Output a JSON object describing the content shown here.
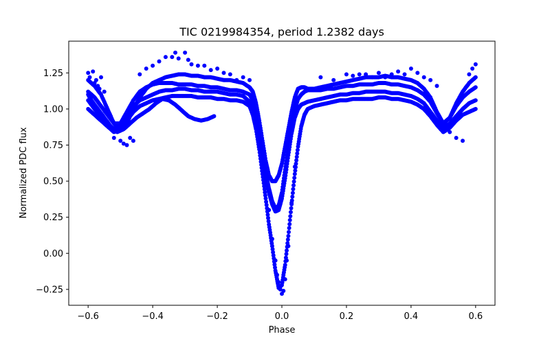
{
  "chart_data": {
    "type": "scatter",
    "title": "TIC 0219984354, period 1.2382 days",
    "xlabel": "Phase",
    "ylabel": "Normalized PDC flux",
    "xlim": [
      -0.66,
      0.66
    ],
    "ylim": [
      -0.36,
      1.47
    ],
    "x_ticks": [
      -0.6,
      -0.4,
      -0.2,
      0.0,
      0.2,
      0.4,
      0.6
    ],
    "x_tick_labels": [
      "−0.6",
      "−0.4",
      "−0.2",
      "0.0",
      "0.2",
      "0.4",
      "0.6"
    ],
    "y_ticks": [
      -0.25,
      0.0,
      0.25,
      0.5,
      0.75,
      1.0,
      1.25
    ],
    "y_tick_labels": [
      "−0.25",
      "0.00",
      "0.25",
      "0.50",
      "0.75",
      "1.00",
      "1.25"
    ],
    "grid": false,
    "marker_color": "#0000ff",
    "series": [
      {
        "x": [
          -0.6,
          -0.58,
          -0.56,
          -0.54,
          -0.52,
          -0.5,
          -0.48,
          -0.46,
          -0.44,
          -0.42,
          -0.4,
          -0.38,
          -0.36,
          -0.34,
          -0.32,
          -0.3,
          -0.28,
          -0.26,
          -0.24,
          -0.22,
          -0.2,
          -0.18,
          -0.16,
          -0.14,
          -0.12,
          -0.1,
          -0.09,
          -0.08,
          -0.07,
          -0.06,
          -0.05,
          -0.04,
          -0.03,
          -0.02,
          -0.01,
          0.0,
          0.01,
          0.02,
          0.03,
          0.04,
          0.05,
          0.06,
          0.07,
          0.08,
          0.1,
          0.12,
          0.14,
          0.16,
          0.18,
          0.2,
          0.22,
          0.24,
          0.26,
          0.28,
          0.3,
          0.32,
          0.34,
          0.36,
          0.38,
          0.4,
          0.42,
          0.44,
          0.46,
          0.48,
          0.5,
          0.52,
          0.54,
          0.56,
          0.58,
          0.6
        ],
        "y": [
          1.06,
          1.0,
          0.95,
          0.9,
          0.86,
          0.88,
          0.95,
          1.02,
          1.06,
          1.08,
          1.1,
          1.12,
          1.13,
          1.13,
          1.14,
          1.14,
          1.13,
          1.13,
          1.12,
          1.12,
          1.12,
          1.11,
          1.1,
          1.1,
          1.09,
          1.05,
          1.0,
          0.92,
          0.8,
          0.66,
          0.52,
          0.42,
          0.34,
          0.29,
          0.3,
          0.38,
          0.52,
          0.68,
          0.83,
          0.94,
          1.0,
          1.03,
          1.04,
          1.05,
          1.06,
          1.07,
          1.08,
          1.09,
          1.1,
          1.1,
          1.11,
          1.11,
          1.12,
          1.12,
          1.12,
          1.12,
          1.11,
          1.11,
          1.1,
          1.09,
          1.07,
          1.04,
          0.98,
          0.92,
          0.87,
          0.9,
          0.95,
          1.0,
          1.04,
          1.06
        ]
      },
      {
        "x": [
          -0.6,
          -0.58,
          -0.56,
          -0.54,
          -0.52,
          -0.5,
          -0.48,
          -0.46,
          -0.44,
          -0.42,
          -0.4,
          -0.38,
          -0.36,
          -0.34,
          -0.32,
          -0.3,
          -0.28,
          -0.26,
          -0.24,
          -0.22,
          -0.2,
          -0.18,
          -0.16,
          -0.14,
          -0.12,
          -0.1,
          -0.09,
          -0.08,
          -0.07,
          -0.06,
          -0.05,
          -0.04,
          -0.03,
          -0.02,
          -0.01,
          0.0,
          0.01,
          0.02,
          0.03,
          0.04,
          0.05,
          0.06,
          0.07,
          0.08,
          0.1,
          0.12,
          0.14,
          0.16,
          0.18,
          0.2,
          0.22,
          0.24,
          0.26,
          0.28,
          0.3,
          0.32,
          0.34,
          0.36,
          0.38,
          0.4,
          0.42,
          0.44,
          0.46,
          0.48,
          0.5,
          0.52,
          0.54,
          0.56,
          0.58,
          0.6
        ],
        "y": [
          1.12,
          1.08,
          1.02,
          0.96,
          0.9,
          0.9,
          0.98,
          1.06,
          1.12,
          1.15,
          1.17,
          1.18,
          1.18,
          1.18,
          1.17,
          1.17,
          1.17,
          1.16,
          1.16,
          1.15,
          1.15,
          1.14,
          1.13,
          1.13,
          1.12,
          1.1,
          1.06,
          0.98,
          0.85,
          0.7,
          0.56,
          0.45,
          0.36,
          0.31,
          0.33,
          0.42,
          0.58,
          0.74,
          0.89,
          0.99,
          1.07,
          1.1,
          1.12,
          1.13,
          1.13,
          1.13,
          1.14,
          1.14,
          1.15,
          1.16,
          1.16,
          1.17,
          1.17,
          1.17,
          1.18,
          1.18,
          1.17,
          1.17,
          1.16,
          1.15,
          1.13,
          1.1,
          1.05,
          0.97,
          0.9,
          0.94,
          1.02,
          1.08,
          1.12,
          1.15
        ]
      },
      {
        "x": [
          -0.6,
          -0.58,
          -0.56,
          -0.54,
          -0.52,
          -0.5,
          -0.48,
          -0.46,
          -0.44,
          -0.42,
          -0.4,
          -0.38,
          -0.36,
          -0.34,
          -0.32,
          -0.3,
          -0.28,
          -0.26,
          -0.24,
          -0.22,
          -0.2,
          -0.18,
          -0.16,
          -0.14,
          -0.12,
          -0.1,
          -0.09,
          -0.08,
          -0.07,
          -0.06,
          -0.05,
          -0.04,
          -0.03,
          -0.02,
          -0.01,
          0.0,
          0.01,
          0.02,
          0.03,
          0.04,
          0.05,
          0.06,
          0.07,
          0.08,
          0.1,
          0.12,
          0.14,
          0.16,
          0.18,
          0.2,
          0.22,
          0.24,
          0.26,
          0.28,
          0.3,
          0.32,
          0.34,
          0.36,
          0.38,
          0.4,
          0.42,
          0.44,
          0.46,
          0.48,
          0.5,
          0.52,
          0.54,
          0.56,
          0.58,
          0.6
        ],
        "y": [
          1.0,
          0.96,
          0.92,
          0.88,
          0.84,
          0.86,
          0.92,
          0.98,
          1.02,
          1.04,
          1.06,
          1.07,
          1.08,
          1.09,
          1.09,
          1.09,
          1.09,
          1.08,
          1.08,
          1.08,
          1.07,
          1.07,
          1.06,
          1.06,
          1.05,
          1.02,
          0.96,
          0.86,
          0.72,
          0.55,
          0.38,
          0.2,
          0.05,
          -0.12,
          -0.24,
          -0.22,
          -0.08,
          0.12,
          0.34,
          0.55,
          0.74,
          0.88,
          0.96,
          1.0,
          1.02,
          1.03,
          1.04,
          1.05,
          1.06,
          1.06,
          1.07,
          1.07,
          1.07,
          1.07,
          1.08,
          1.08,
          1.07,
          1.07,
          1.06,
          1.05,
          1.03,
          1.0,
          0.95,
          0.89,
          0.84,
          0.87,
          0.92,
          0.96,
          0.98,
          1.0
        ]
      },
      {
        "x": [
          -0.6,
          -0.58,
          -0.56,
          -0.54,
          -0.52,
          -0.5,
          -0.48,
          -0.46,
          -0.44,
          -0.42,
          -0.4,
          -0.38,
          -0.36,
          -0.34,
          -0.32,
          -0.3,
          -0.28,
          -0.26,
          -0.24,
          -0.22,
          -0.2,
          -0.18,
          -0.16,
          -0.14,
          -0.12,
          -0.1,
          -0.09,
          -0.08,
          -0.07,
          -0.06,
          -0.05,
          -0.04,
          -0.03,
          -0.02,
          -0.01,
          0.0,
          0.01,
          0.02,
          0.03,
          0.04,
          0.05,
          0.06,
          0.07,
          0.08,
          0.1,
          0.12,
          0.14,
          0.16,
          0.18,
          0.2,
          0.22,
          0.24,
          0.26,
          0.28,
          0.3,
          0.32,
          0.34,
          0.36,
          0.38,
          0.4,
          0.42,
          0.44,
          0.46,
          0.48,
          0.5,
          0.52,
          0.54,
          0.56,
          0.58,
          0.6
        ],
        "y": [
          1.2,
          1.16,
          1.1,
          1.0,
          0.9,
          0.85,
          0.9,
          1.0,
          1.08,
          1.14,
          1.18,
          1.2,
          1.22,
          1.23,
          1.24,
          1.24,
          1.23,
          1.23,
          1.22,
          1.22,
          1.21,
          1.2,
          1.2,
          1.19,
          1.18,
          1.15,
          1.12,
          1.04,
          0.92,
          0.78,
          0.64,
          0.54,
          0.5,
          0.5,
          0.54,
          0.62,
          0.74,
          0.86,
          0.98,
          1.08,
          1.14,
          1.15,
          1.15,
          1.14,
          1.14,
          1.15,
          1.16,
          1.17,
          1.18,
          1.19,
          1.2,
          1.21,
          1.22,
          1.22,
          1.22,
          1.23,
          1.22,
          1.22,
          1.21,
          1.2,
          1.18,
          1.14,
          1.08,
          0.98,
          0.9,
          0.94,
          1.04,
          1.12,
          1.18,
          1.22
        ]
      },
      {
        "x": [
          -0.6,
          -0.59,
          -0.57,
          -0.55,
          -0.53,
          -0.51,
          -0.49,
          -0.47,
          -0.45,
          -0.43,
          -0.41,
          -0.39,
          -0.37,
          -0.35,
          -0.33,
          -0.31,
          -0.29,
          -0.27,
          -0.25,
          -0.23,
          -0.21
        ],
        "y": [
          1.1,
          1.06,
          1.0,
          0.94,
          0.88,
          0.84,
          0.86,
          0.9,
          0.94,
          0.97,
          1.0,
          1.04,
          1.07,
          1.06,
          1.03,
          0.99,
          0.95,
          0.93,
          0.92,
          0.93,
          0.95
        ]
      },
      {
        "x": [
          -0.6,
          -0.595,
          -0.585,
          -0.58,
          -0.575,
          -0.57,
          -0.565,
          -0.56,
          -0.55,
          -0.52,
          -0.5,
          -0.49,
          -0.48,
          -0.47,
          -0.46,
          -0.44,
          -0.42,
          -0.4,
          -0.38,
          -0.36,
          -0.34,
          -0.33,
          -0.32,
          -0.3,
          -0.29,
          -0.28,
          -0.26,
          -0.24,
          -0.22,
          -0.2,
          -0.18,
          -0.16,
          -0.14,
          -0.12,
          -0.1,
          -0.06,
          -0.04,
          -0.03,
          -0.02,
          -0.015,
          -0.01,
          -0.005,
          0.0,
          0.005,
          0.01,
          0.015,
          0.02,
          0.03,
          0.04,
          0.12,
          0.16,
          0.2,
          0.22,
          0.24,
          0.26,
          0.28,
          0.3,
          0.32,
          0.34,
          0.36,
          0.38,
          0.4,
          0.42,
          0.44,
          0.46,
          0.48,
          0.5,
          0.52,
          0.54,
          0.56,
          0.58,
          0.59,
          0.6
        ],
        "y": [
          1.25,
          1.22,
          1.26,
          1.18,
          1.2,
          1.16,
          1.14,
          1.22,
          1.12,
          0.8,
          0.78,
          0.76,
          0.75,
          0.8,
          0.78,
          1.24,
          1.28,
          1.3,
          1.33,
          1.36,
          1.36,
          1.39,
          1.35,
          1.39,
          1.34,
          1.31,
          1.3,
          1.3,
          1.27,
          1.28,
          1.25,
          1.24,
          1.2,
          1.22,
          1.2,
          0.6,
          0.3,
          0.1,
          -0.05,
          -0.15,
          -0.2,
          -0.25,
          -0.28,
          -0.26,
          -0.18,
          -0.05,
          0.05,
          0.35,
          0.6,
          1.22,
          1.2,
          1.24,
          1.23,
          1.24,
          1.24,
          1.22,
          1.25,
          1.22,
          1.24,
          1.26,
          1.24,
          1.28,
          1.25,
          1.22,
          1.2,
          1.16,
          0.9,
          0.84,
          0.8,
          0.78,
          1.24,
          1.28,
          1.31
        ]
      }
    ]
  }
}
